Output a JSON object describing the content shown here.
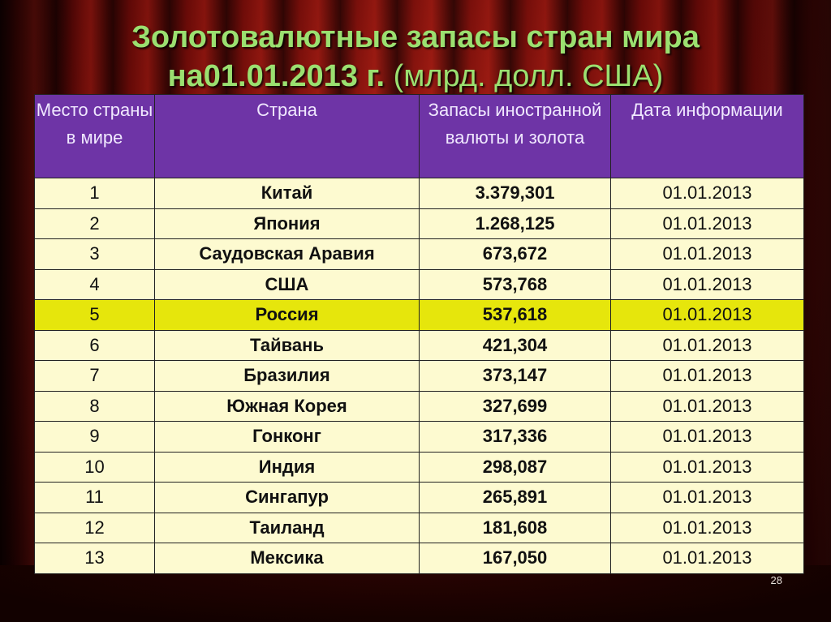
{
  "title": {
    "line1": "Золотовалютные запасы стран мира",
    "line2_bold": "на01.01.2013 г.",
    "line2_unit": " (млрд. долл. США)"
  },
  "table": {
    "headers": [
      "Место страны в мире",
      "Страна",
      "Запасы иностранной валюты и золота",
      "Дата информации"
    ],
    "rows": [
      {
        "rank": "1",
        "country": "Китай",
        "amount": "3.379,301",
        "date": "01.01.2013"
      },
      {
        "rank": "2",
        "country": "Япония",
        "amount": "1.268,125",
        "date": "01.01.2013"
      },
      {
        "rank": "3",
        "country": "Саудовская Аравия",
        "amount": "673,672",
        "date": "01.01.2013"
      },
      {
        "rank": "4",
        "country": "США",
        "amount": "573,768",
        "date": "01.01.2013"
      },
      {
        "rank": "5",
        "country": "Россия",
        "amount": "537,618",
        "date": "01.01.2013"
      },
      {
        "rank": "6",
        "country": "Тайвань",
        "amount": "421,304",
        "date": "01.01.2013"
      },
      {
        "rank": "7",
        "country": "Бразилия",
        "amount": "373,147",
        "date": "01.01.2013"
      },
      {
        "rank": "8",
        "country": "Южная Корея",
        "amount": "327,699",
        "date": "01.01.2013"
      },
      {
        "rank": "9",
        "country": "Гонконг",
        "amount": "317,336",
        "date": "01.01.2013"
      },
      {
        "rank": "10",
        "country": "Индия",
        "amount": "298,087",
        "date": "01.01.2013"
      },
      {
        "rank": "11",
        "country": "Сингапур",
        "amount": "265,891",
        "date": "01.01.2013"
      },
      {
        "rank": "12",
        "country": "Таиланд",
        "amount": "181,608",
        "date": "01.01.2013"
      },
      {
        "rank": "13",
        "country": "Мексика",
        "amount": "167,050",
        "date": "01.01.2013"
      }
    ]
  },
  "colors": {
    "title": "#9be070",
    "header_bg": "#6e34a6",
    "row_bg": "#fdfad0",
    "highlight_bg": "#e6e60c"
  },
  "page_number": "28"
}
